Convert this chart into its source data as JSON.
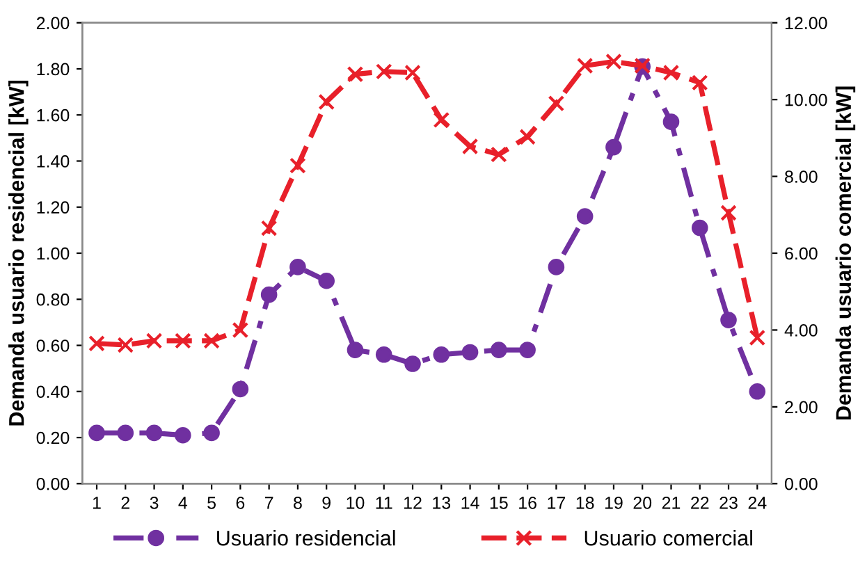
{
  "chart_data": {
    "type": "line",
    "ylabel": "Demanda usuario residencial [kW]",
    "y2label": "Demanda usuario comercial [kW]",
    "categories": [
      "1",
      "2",
      "3",
      "4",
      "5",
      "6",
      "7",
      "8",
      "9",
      "10",
      "11",
      "12",
      "13",
      "14",
      "15",
      "16",
      "17",
      "18",
      "19",
      "20",
      "21",
      "22",
      "23",
      "24"
    ],
    "series": [
      {
        "name": "Usuario residencial",
        "color": "#7030a0",
        "marker": "circle",
        "line_style": "dashdot",
        "values": [
          0.22,
          0.22,
          0.22,
          0.21,
          0.22,
          0.41,
          0.82,
          0.94,
          0.88,
          0.58,
          0.56,
          0.52,
          0.56,
          0.57,
          0.58,
          0.58,
          0.94,
          1.16,
          1.46,
          1.81,
          1.57,
          1.11,
          0.71,
          0.4
        ]
      },
      {
        "name": "Usuario comercial",
        "color": "#e8202a",
        "marker": "cross",
        "line_style": "dashed",
        "axis": "y2",
        "values": [
          3.65,
          3.61,
          3.72,
          3.72,
          3.72,
          4.0,
          6.65,
          8.28,
          9.94,
          10.66,
          10.73,
          10.7,
          9.47,
          8.78,
          8.57,
          9.03,
          9.9,
          10.88,
          10.99,
          10.88,
          10.7,
          10.44,
          7.05,
          3.8
        ]
      }
    ],
    "ylim": [
      0,
      2
    ],
    "yticks": [
      {
        "value": 0,
        "label": "0.00"
      },
      {
        "value": 0.2,
        "label": "0.20"
      },
      {
        "value": 0.4,
        "label": "0.40"
      },
      {
        "value": 0.6,
        "label": "0.60"
      },
      {
        "value": 0.8,
        "label": "0.80"
      },
      {
        "value": 1,
        "label": "1.00"
      },
      {
        "value": 1.2,
        "label": "1.20"
      },
      {
        "value": 1.4,
        "label": "1.40"
      },
      {
        "value": 1.6,
        "label": "1.60"
      },
      {
        "value": 1.8,
        "label": "1.80"
      },
      {
        "value": 2,
        "label": "2.00"
      }
    ],
    "y2lim": [
      0,
      12
    ],
    "y2ticks": [
      {
        "value": 0,
        "label": "0.00"
      },
      {
        "value": 2,
        "label": "2.00"
      },
      {
        "value": 4,
        "label": "4.00"
      },
      {
        "value": 6,
        "label": "6.00"
      },
      {
        "value": 8,
        "label": "8.00"
      },
      {
        "value": 10,
        "label": "10.00"
      },
      {
        "value": 12,
        "label": "12.00"
      }
    ],
    "grid": false,
    "legend": "bottom"
  }
}
